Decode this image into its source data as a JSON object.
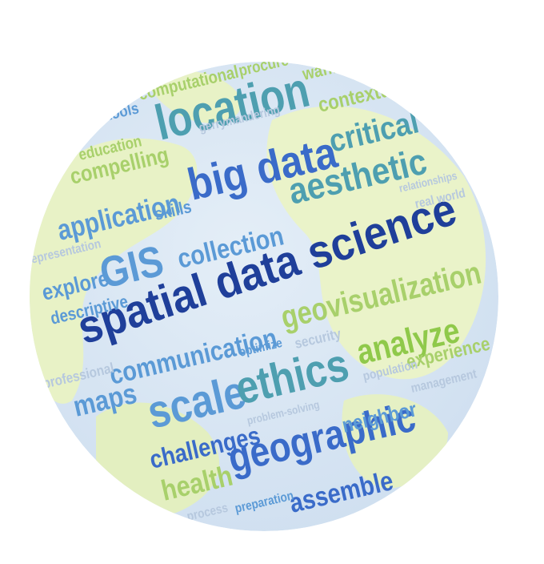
{
  "colors": {
    "sky": "#dbe8f4",
    "land": "#e9f3c8",
    "navy": "#1f3f9a",
    "blue": "#3a6bc9",
    "sky_blue": "#5b9ad6",
    "teal": "#4e9fb0",
    "green": "#8fc94a",
    "light_green": "#a8d06b",
    "faint": "#b6c8de"
  },
  "words": [
    "spatial data science",
    "location",
    "big data",
    "aesthetic",
    "critical",
    "contextual",
    "GIS",
    "application",
    "collection",
    "skills",
    "explore",
    "descriptive",
    "communication",
    "scale",
    "ethics",
    "analyze",
    "geovisualization",
    "geographic",
    "assemble",
    "challenges",
    "health",
    "maps",
    "compelling",
    "education",
    "computational",
    "procure",
    "waffles",
    "gerrymandering",
    "tools",
    "neighbor",
    "experience",
    "management",
    "security",
    "optimize",
    "process",
    "preparation",
    "professional",
    "representation",
    "real world",
    "population",
    "problem-solving",
    "relationships"
  ]
}
